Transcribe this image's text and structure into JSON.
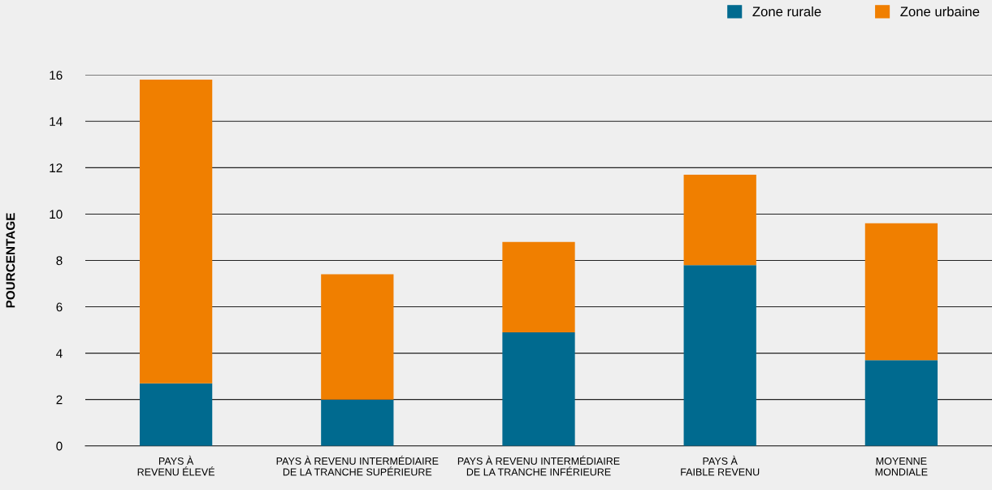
{
  "chart_data": {
    "type": "bar",
    "stacked": true,
    "ylabel": "POURCENTAGE",
    "categories": [
      "PAYS À\nREVENU ÉLEVÉ",
      "PAYS À REVENU INTERMÉDIAIRE\nDE LA TRANCHE SUPÉRIEURE",
      "PAYS À REVENU INTERMÉDIAIRE\nDE LA TRANCHE INFÉRIEURE",
      "PAYS À\nFAIBLE REVENU",
      "MOYENNE\nMONDIALE"
    ],
    "series": [
      {
        "name": "Zone rurale",
        "color": "#006a8f",
        "values": [
          2.7,
          2.0,
          4.9,
          7.8,
          3.7
        ]
      },
      {
        "name": "Zone urbaine",
        "color": "#f07f00",
        "values": [
          13.1,
          5.4,
          3.9,
          3.9,
          5.9
        ]
      }
    ],
    "ylim": [
      0,
      16
    ],
    "yticks": [
      0,
      2,
      4,
      6,
      8,
      10,
      12,
      14,
      16
    ],
    "grid": "y",
    "legend": "top right"
  }
}
